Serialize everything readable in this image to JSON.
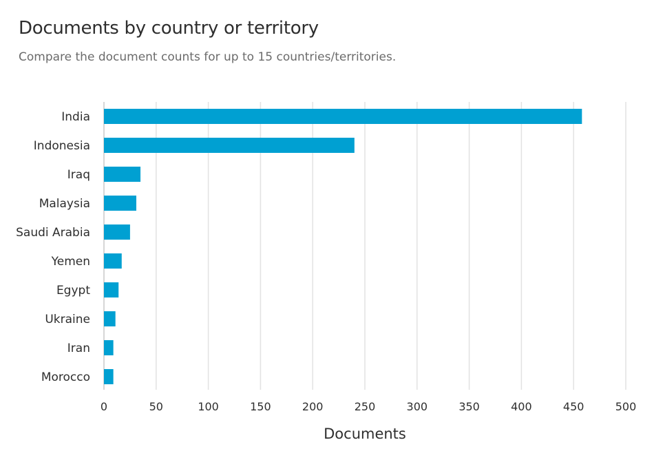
{
  "chart_data": {
    "type": "bar",
    "orientation": "horizontal",
    "title": "Documents by country or territory",
    "subtitle": "Compare the document counts for up to 15 countries/territories.",
    "xlabel": "Documents",
    "ylabel": "",
    "categories": [
      "India",
      "Indonesia",
      "Iraq",
      "Malaysia",
      "Saudi Arabia",
      "Yemen",
      "Egypt",
      "Ukraine",
      "Iran",
      "Morocco"
    ],
    "values": [
      458,
      240,
      35,
      31,
      25,
      17,
      14,
      11,
      9,
      9
    ],
    "xlim": [
      0,
      500
    ],
    "xticks": [
      0,
      50,
      100,
      150,
      200,
      250,
      300,
      350,
      400,
      450,
      500
    ],
    "grid": true,
    "legend": "none",
    "bar_color": "#00a0d2"
  }
}
